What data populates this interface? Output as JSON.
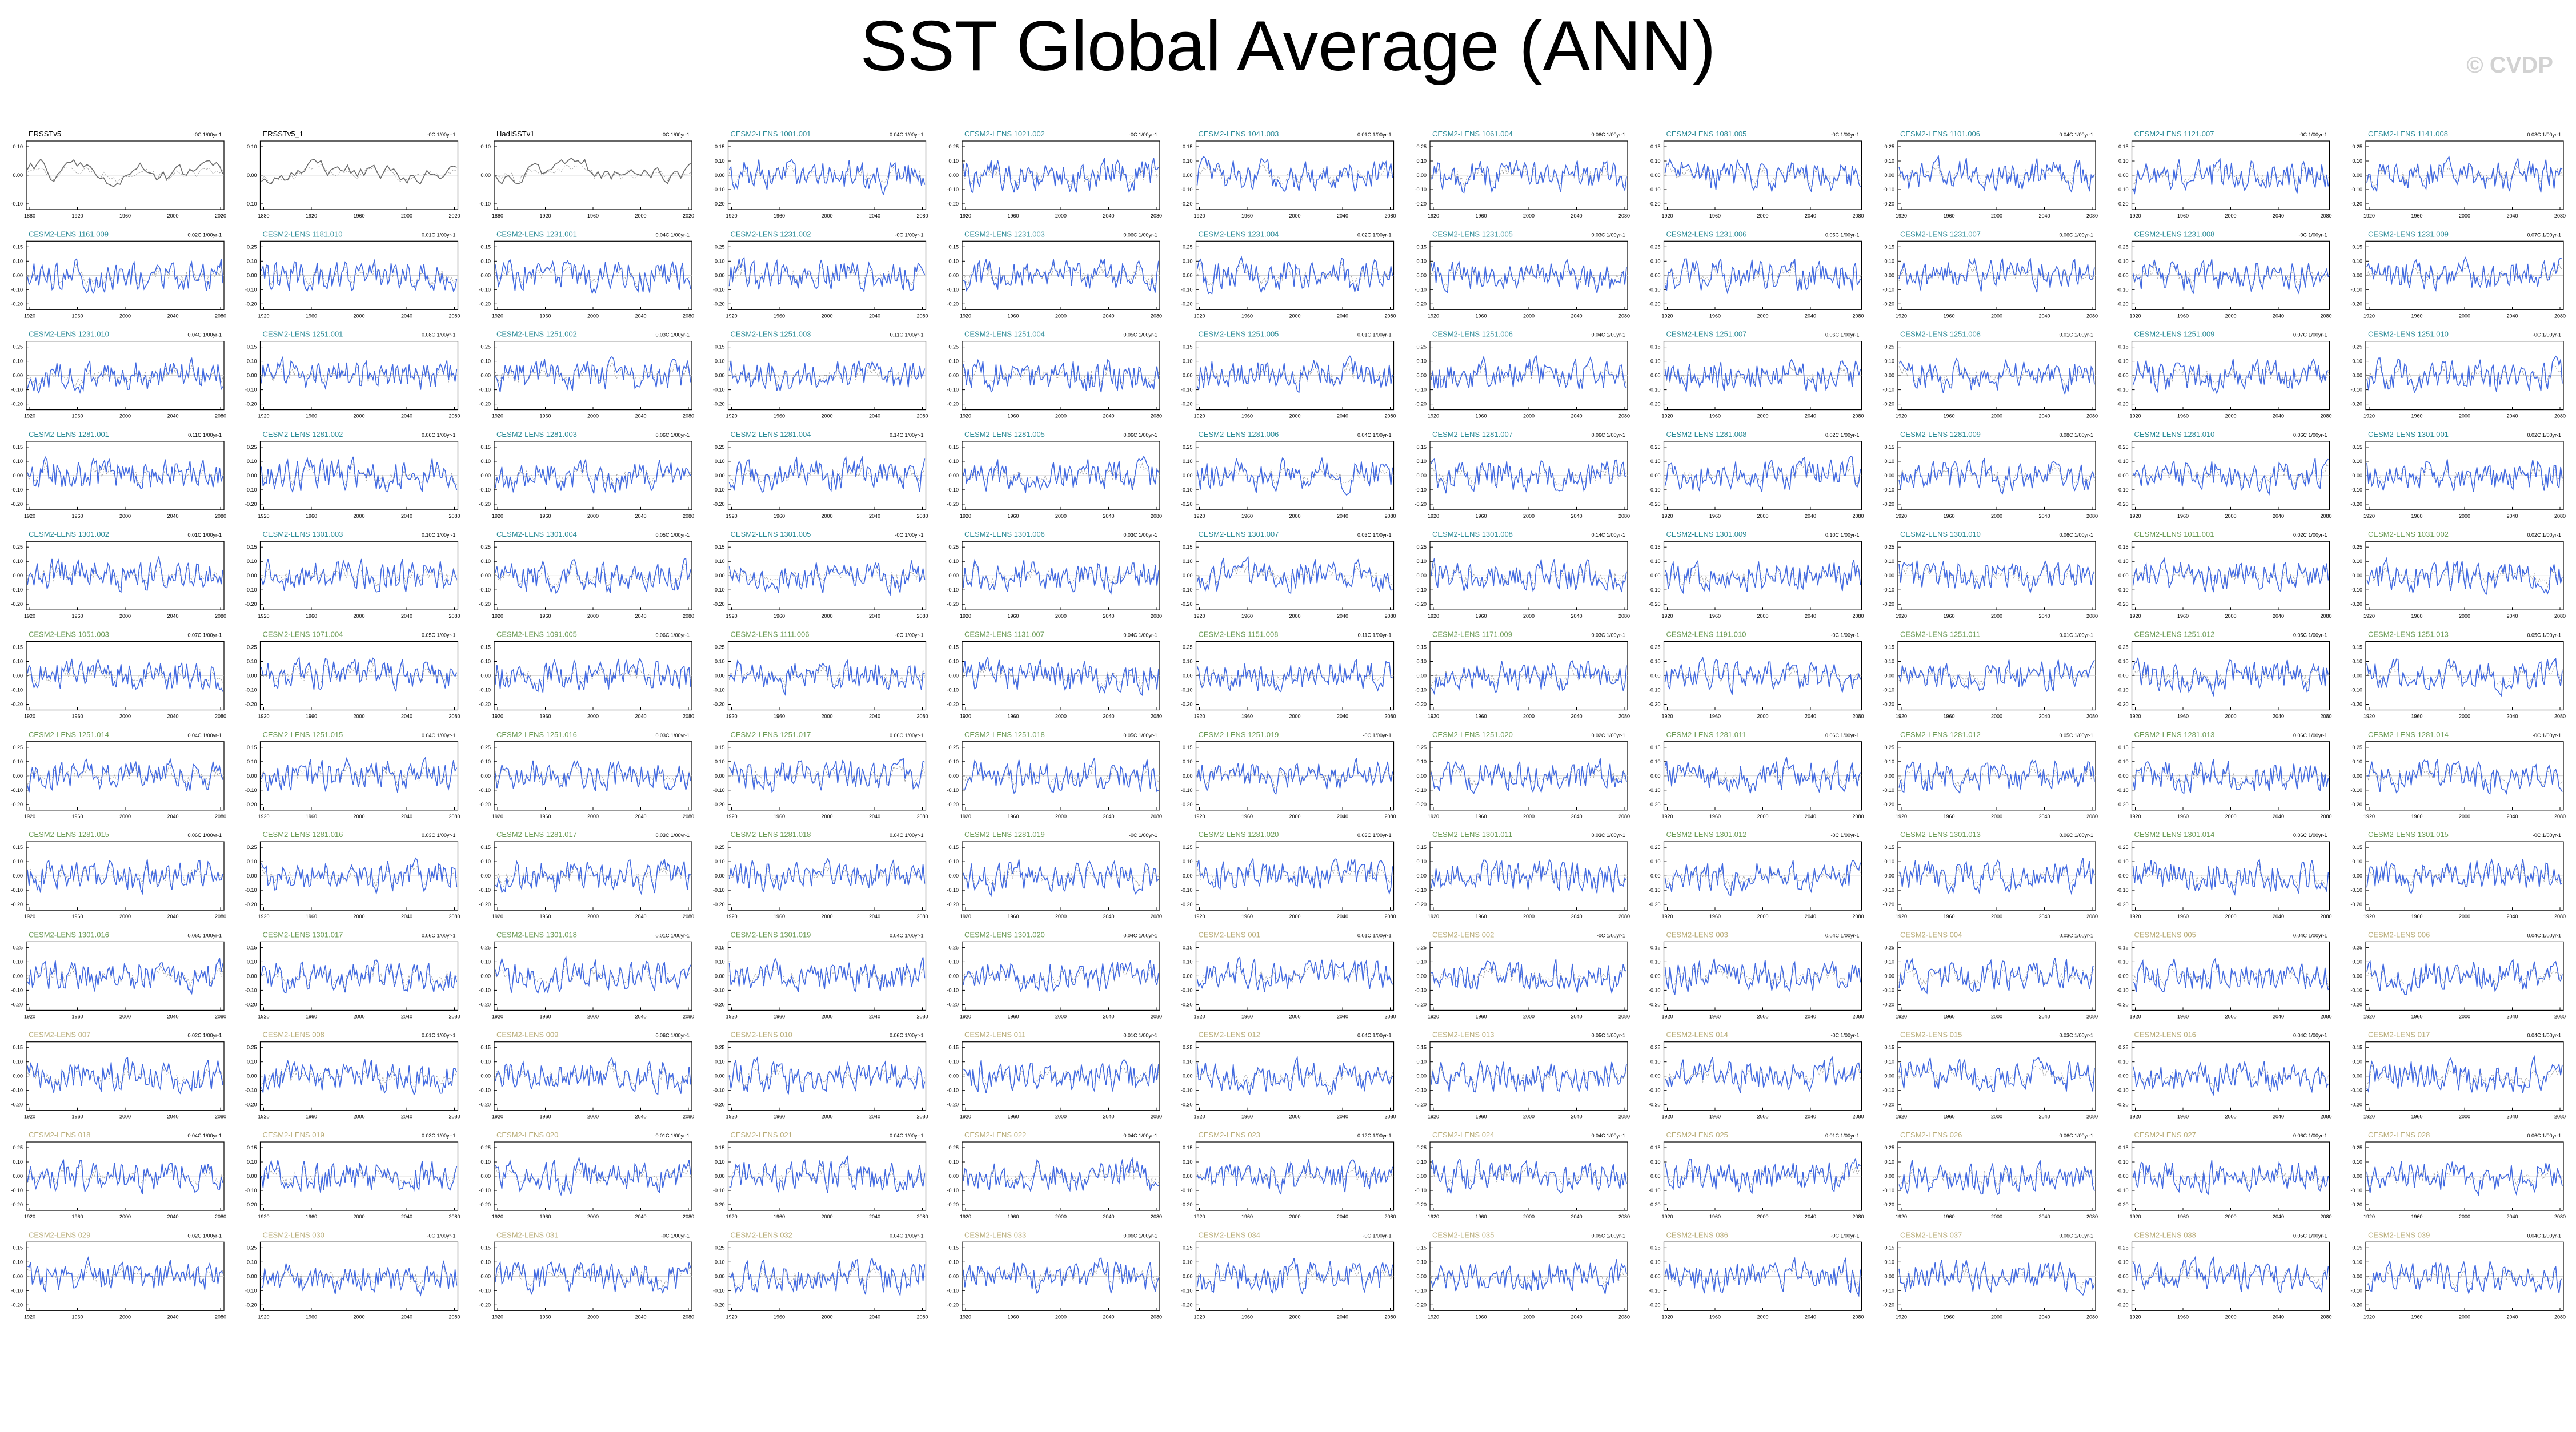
{
  "page": {
    "title": "SST Global Average (ANN)",
    "copyright": "© CVDP"
  },
  "colors": {
    "model_line": "#4169e1",
    "obs_line": "#6a6a6a",
    "obs_title": "#000000",
    "title_teal": "#2a8a96",
    "title_green": "#6a9a55",
    "title_khaki": "#b8ac78",
    "trend_line": "#888888"
  },
  "chart_data": {
    "type": "line",
    "layout": "small-multiples",
    "x_ticks_obs": [
      "1880",
      "1920",
      "1960",
      "2000",
      "2020"
    ],
    "x_ticks_model": [
      "1920",
      "1960",
      "2000",
      "2040",
      "2080"
    ],
    "y_ticks": [
      "0.25",
      "0.15",
      "0.10",
      "0.00",
      "-0.10",
      "-0.20",
      "-0.25",
      "-0.30"
    ],
    "panels": [
      {
        "title": "ERSSTv5",
        "trend": "-0C 1/00yr-1",
        "kind": "obs",
        "color": "obs_title"
      },
      {
        "title": "ERSSTv5_1",
        "trend": "-0C 1/00yr-1",
        "kind": "obs",
        "color": "obs_title"
      },
      {
        "title": "HadISSTv1",
        "trend": "-0C 1/00yr-1",
        "kind": "obs",
        "color": "obs_title"
      },
      {
        "title": "CESM2-LENS 1001.001",
        "trend": "0.04C 1/00yr-1",
        "kind": "model",
        "color": "title_teal"
      },
      {
        "title": "CESM2-LENS 1021.002",
        "trend": "-0C 1/00yr-1",
        "kind": "model",
        "color": "title_teal"
      },
      {
        "title": "CESM2-LENS 1041.003",
        "trend": "0.01C 1/00yr-1",
        "kind": "model",
        "color": "title_teal"
      },
      {
        "title": "CESM2-LENS 1061.004",
        "trend": "0.06C 1/00yr-1",
        "kind": "model",
        "color": "title_teal"
      },
      {
        "title": "CESM2-LENS 1081.005",
        "trend": "-0C 1/00yr-1",
        "kind": "model",
        "color": "title_teal"
      },
      {
        "title": "CESM2-LENS 1101.006",
        "trend": "0.04C 1/00yr-1",
        "kind": "model",
        "color": "title_teal"
      },
      {
        "title": "CESM2-LENS 1121.007",
        "trend": "-0C 1/00yr-1",
        "kind": "model",
        "color": "title_teal"
      },
      {
        "title": "CESM2-LENS 1141.008",
        "trend": "0.03C 1/00yr-1",
        "kind": "model",
        "color": "title_teal"
      },
      {
        "title": "CESM2-LENS 1161.009",
        "trend": "0.02C 1/00yr-1",
        "kind": "model",
        "color": "title_teal"
      },
      {
        "title": "CESM2-LENS 1181.010",
        "trend": "0.01C 1/00yr-1",
        "kind": "model",
        "color": "title_teal"
      },
      {
        "title": "CESM2-LENS 1231.001",
        "trend": "0.04C 1/00yr-1",
        "kind": "model",
        "color": "title_teal"
      },
      {
        "title": "CESM2-LENS 1231.002",
        "trend": "-0C 1/00yr-1",
        "kind": "model",
        "color": "title_teal"
      },
      {
        "title": "CESM2-LENS 1231.003",
        "trend": "0.06C 1/00yr-1",
        "kind": "model",
        "color": "title_teal"
      },
      {
        "title": "CESM2-LENS 1231.004",
        "trend": "0.02C 1/00yr-1",
        "kind": "model",
        "color": "title_teal"
      },
      {
        "title": "CESM2-LENS 1231.005",
        "trend": "0.03C 1/00yr-1",
        "kind": "model",
        "color": "title_teal"
      },
      {
        "title": "CESM2-LENS 1231.006",
        "trend": "0.05C 1/00yr-1",
        "kind": "model",
        "color": "title_teal"
      },
      {
        "title": "CESM2-LENS 1231.007",
        "trend": "0.06C 1/00yr-1",
        "kind": "model",
        "color": "title_teal"
      },
      {
        "title": "CESM2-LENS 1231.008",
        "trend": "-0C 1/00yr-1",
        "kind": "model",
        "color": "title_teal"
      },
      {
        "title": "CESM2-LENS 1231.009",
        "trend": "0.07C 1/00yr-1",
        "kind": "model",
        "color": "title_teal"
      },
      {
        "title": "CESM2-LENS 1231.010",
        "trend": "0.04C 1/00yr-1",
        "kind": "model",
        "color": "title_teal"
      },
      {
        "title": "CESM2-LENS 1251.001",
        "trend": "0.08C 1/00yr-1",
        "kind": "model",
        "color": "title_teal"
      },
      {
        "title": "CESM2-LENS 1251.002",
        "trend": "0.03C 1/00yr-1",
        "kind": "model",
        "color": "title_teal"
      },
      {
        "title": "CESM2-LENS 1251.003",
        "trend": "0.11C 1/00yr-1",
        "kind": "model",
        "color": "title_teal"
      },
      {
        "title": "CESM2-LENS 1251.004",
        "trend": "0.05C 1/00yr-1",
        "kind": "model",
        "color": "title_teal"
      },
      {
        "title": "CESM2-LENS 1251.005",
        "trend": "0.01C 1/00yr-1",
        "kind": "model",
        "color": "title_teal"
      },
      {
        "title": "CESM2-LENS 1251.006",
        "trend": "0.04C 1/00yr-1",
        "kind": "model",
        "color": "title_teal"
      },
      {
        "title": "CESM2-LENS 1251.007",
        "trend": "0.06C 1/00yr-1",
        "kind": "model",
        "color": "title_teal"
      },
      {
        "title": "CESM2-LENS 1251.008",
        "trend": "0.01C 1/00yr-1",
        "kind": "model",
        "color": "title_teal"
      },
      {
        "title": "CESM2-LENS 1251.009",
        "trend": "0.07C 1/00yr-1",
        "kind": "model",
        "color": "title_teal"
      },
      {
        "title": "CESM2-LENS 1251.010",
        "trend": "-0C 1/00yr-1",
        "kind": "model",
        "color": "title_teal"
      },
      {
        "title": "CESM2-LENS 1281.001",
        "trend": "0.11C 1/00yr-1",
        "kind": "model",
        "color": "title_teal"
      },
      {
        "title": "CESM2-LENS 1281.002",
        "trend": "0.06C 1/00yr-1",
        "kind": "model",
        "color": "title_teal"
      },
      {
        "title": "CESM2-LENS 1281.003",
        "trend": "0.06C 1/00yr-1",
        "kind": "model",
        "color": "title_teal"
      },
      {
        "title": "CESM2-LENS 1281.004",
        "trend": "0.14C 1/00yr-1",
        "kind": "model",
        "color": "title_teal"
      },
      {
        "title": "CESM2-LENS 1281.005",
        "trend": "0.06C 1/00yr-1",
        "kind": "model",
        "color": "title_teal"
      },
      {
        "title": "CESM2-LENS 1281.006",
        "trend": "0.04C 1/00yr-1",
        "kind": "model",
        "color": "title_teal"
      },
      {
        "title": "CESM2-LENS 1281.007",
        "trend": "0.06C 1/00yr-1",
        "kind": "model",
        "color": "title_teal"
      },
      {
        "title": "CESM2-LENS 1281.008",
        "trend": "0.02C 1/00yr-1",
        "kind": "model",
        "color": "title_teal"
      },
      {
        "title": "CESM2-LENS 1281.009",
        "trend": "0.08C 1/00yr-1",
        "kind": "model",
        "color": "title_teal"
      },
      {
        "title": "CESM2-LENS 1281.010",
        "trend": "0.06C 1/00yr-1",
        "kind": "model",
        "color": "title_teal"
      },
      {
        "title": "CESM2-LENS 1301.001",
        "trend": "0.02C 1/00yr-1",
        "kind": "model",
        "color": "title_teal"
      },
      {
        "title": "CESM2-LENS 1301.002",
        "trend": "0.01C 1/00yr-1",
        "kind": "model",
        "color": "title_teal"
      },
      {
        "title": "CESM2-LENS 1301.003",
        "trend": "0.10C 1/00yr-1",
        "kind": "model",
        "color": "title_teal"
      },
      {
        "title": "CESM2-LENS 1301.004",
        "trend": "0.05C 1/00yr-1",
        "kind": "model",
        "color": "title_teal"
      },
      {
        "title": "CESM2-LENS 1301.005",
        "trend": "-0C 1/00yr-1",
        "kind": "model",
        "color": "title_teal"
      },
      {
        "title": "CESM2-LENS 1301.006",
        "trend": "0.03C 1/00yr-1",
        "kind": "model",
        "color": "title_teal"
      },
      {
        "title": "CESM2-LENS 1301.007",
        "trend": "0.03C 1/00yr-1",
        "kind": "model",
        "color": "title_teal"
      },
      {
        "title": "CESM2-LENS 1301.008",
        "trend": "0.14C 1/00yr-1",
        "kind": "model",
        "color": "title_teal"
      },
      {
        "title": "CESM2-LENS 1301.009",
        "trend": "0.10C 1/00yr-1",
        "kind": "model",
        "color": "title_teal"
      },
      {
        "title": "CESM2-LENS 1301.010",
        "trend": "0.06C 1/00yr-1",
        "kind": "model",
        "color": "title_teal"
      },
      {
        "title": "CESM2-LENS 1011.001",
        "trend": "0.02C 1/00yr-1",
        "kind": "model",
        "color": "title_green"
      },
      {
        "title": "CESM2-LENS 1031.002",
        "trend": "0.02C 1/00yr-1",
        "kind": "model",
        "color": "title_green"
      },
      {
        "title": "CESM2-LENS 1051.003",
        "trend": "0.07C 1/00yr-1",
        "kind": "model",
        "color": "title_green"
      },
      {
        "title": "CESM2-LENS 1071.004",
        "trend": "0.05C 1/00yr-1",
        "kind": "model",
        "color": "title_green"
      },
      {
        "title": "CESM2-LENS 1091.005",
        "trend": "0.06C 1/00yr-1",
        "kind": "model",
        "color": "title_green"
      },
      {
        "title": "CESM2-LENS 1111.006",
        "trend": "-0C 1/00yr-1",
        "kind": "model",
        "color": "title_green"
      },
      {
        "title": "CESM2-LENS 1131.007",
        "trend": "0.04C 1/00yr-1",
        "kind": "model",
        "color": "title_green"
      },
      {
        "title": "CESM2-LENS 1151.008",
        "trend": "0.11C 1/00yr-1",
        "kind": "model",
        "color": "title_green"
      },
      {
        "title": "CESM2-LENS 1171.009",
        "trend": "0.03C 1/00yr-1",
        "kind": "model",
        "color": "title_green"
      },
      {
        "title": "CESM2-LENS 1191.010",
        "trend": "-0C 1/00yr-1",
        "kind": "model",
        "color": "title_green"
      },
      {
        "title": "CESM2-LENS 1251.011",
        "trend": "0.01C 1/00yr-1",
        "kind": "model",
        "color": "title_green"
      },
      {
        "title": "CESM2-LENS 1251.012",
        "trend": "0.05C 1/00yr-1",
        "kind": "model",
        "color": "title_green"
      },
      {
        "title": "CESM2-LENS 1251.013",
        "trend": "0.05C 1/00yr-1",
        "kind": "model",
        "color": "title_green"
      },
      {
        "title": "CESM2-LENS 1251.014",
        "trend": "0.04C 1/00yr-1",
        "kind": "model",
        "color": "title_green"
      },
      {
        "title": "CESM2-LENS 1251.015",
        "trend": "0.04C 1/00yr-1",
        "kind": "model",
        "color": "title_green"
      },
      {
        "title": "CESM2-LENS 1251.016",
        "trend": "0.03C 1/00yr-1",
        "kind": "model",
        "color": "title_green"
      },
      {
        "title": "CESM2-LENS 1251.017",
        "trend": "0.06C 1/00yr-1",
        "kind": "model",
        "color": "title_green"
      },
      {
        "title": "CESM2-LENS 1251.018",
        "trend": "0.05C 1/00yr-1",
        "kind": "model",
        "color": "title_green"
      },
      {
        "title": "CESM2-LENS 1251.019",
        "trend": "-0C 1/00yr-1",
        "kind": "model",
        "color": "title_green"
      },
      {
        "title": "CESM2-LENS 1251.020",
        "trend": "0.02C 1/00yr-1",
        "kind": "model",
        "color": "title_green"
      },
      {
        "title": "CESM2-LENS 1281.011",
        "trend": "0.06C 1/00yr-1",
        "kind": "model",
        "color": "title_green"
      },
      {
        "title": "CESM2-LENS 1281.012",
        "trend": "0.05C 1/00yr-1",
        "kind": "model",
        "color": "title_green"
      },
      {
        "title": "CESM2-LENS 1281.013",
        "trend": "0.06C 1/00yr-1",
        "kind": "model",
        "color": "title_green"
      },
      {
        "title": "CESM2-LENS 1281.014",
        "trend": "-0C 1/00yr-1",
        "kind": "model",
        "color": "title_green"
      },
      {
        "title": "CESM2-LENS 1281.015",
        "trend": "0.06C 1/00yr-1",
        "kind": "model",
        "color": "title_green"
      },
      {
        "title": "CESM2-LENS 1281.016",
        "trend": "0.03C 1/00yr-1",
        "kind": "model",
        "color": "title_green"
      },
      {
        "title": "CESM2-LENS 1281.017",
        "trend": "0.03C 1/00yr-1",
        "kind": "model",
        "color": "title_green"
      },
      {
        "title": "CESM2-LENS 1281.018",
        "trend": "0.04C 1/00yr-1",
        "kind": "model",
        "color": "title_green"
      },
      {
        "title": "CESM2-LENS 1281.019",
        "trend": "-0C 1/00yr-1",
        "kind": "model",
        "color": "title_green"
      },
      {
        "title": "CESM2-LENS 1281.020",
        "trend": "0.03C 1/00yr-1",
        "kind": "model",
        "color": "title_green"
      },
      {
        "title": "CESM2-LENS 1301.011",
        "trend": "0.03C 1/00yr-1",
        "kind": "model",
        "color": "title_green"
      },
      {
        "title": "CESM2-LENS 1301.012",
        "trend": "-0C 1/00yr-1",
        "kind": "model",
        "color": "title_green"
      },
      {
        "title": "CESM2-LENS 1301.013",
        "trend": "0.06C 1/00yr-1",
        "kind": "model",
        "color": "title_green"
      },
      {
        "title": "CESM2-LENS 1301.014",
        "trend": "0.06C 1/00yr-1",
        "kind": "model",
        "color": "title_green"
      },
      {
        "title": "CESM2-LENS 1301.015",
        "trend": "-0C 1/00yr-1",
        "kind": "model",
        "color": "title_green"
      },
      {
        "title": "CESM2-LENS 1301.016",
        "trend": "0.06C 1/00yr-1",
        "kind": "model",
        "color": "title_green"
      },
      {
        "title": "CESM2-LENS 1301.017",
        "trend": "0.06C 1/00yr-1",
        "kind": "model",
        "color": "title_green"
      },
      {
        "title": "CESM2-LENS 1301.018",
        "trend": "0.01C 1/00yr-1",
        "kind": "model",
        "color": "title_green"
      },
      {
        "title": "CESM2-LENS 1301.019",
        "trend": "0.04C 1/00yr-1",
        "kind": "model",
        "color": "title_green"
      },
      {
        "title": "CESM2-LENS 1301.020",
        "trend": "0.04C 1/00yr-1",
        "kind": "model",
        "color": "title_green"
      },
      {
        "title": "CESM2-LENS 001",
        "trend": "0.01C 1/00yr-1",
        "kind": "model",
        "color": "title_khaki"
      },
      {
        "title": "CESM2-LENS 002",
        "trend": "-0C 1/00yr-1",
        "kind": "model",
        "color": "title_khaki"
      },
      {
        "title": "CESM2-LENS 003",
        "trend": "0.04C 1/00yr-1",
        "kind": "model",
        "color": "title_khaki"
      },
      {
        "title": "CESM2-LENS 004",
        "trend": "0.03C 1/00yr-1",
        "kind": "model",
        "color": "title_khaki"
      },
      {
        "title": "CESM2-LENS 005",
        "trend": "0.04C 1/00yr-1",
        "kind": "model",
        "color": "title_khaki"
      },
      {
        "title": "CESM2-LENS 006",
        "trend": "0.04C 1/00yr-1",
        "kind": "model",
        "color": "title_khaki"
      },
      {
        "title": "CESM2-LENS 007",
        "trend": "0.02C 1/00yr-1",
        "kind": "model",
        "color": "title_khaki"
      },
      {
        "title": "CESM2-LENS 008",
        "trend": "0.01C 1/00yr-1",
        "kind": "model",
        "color": "title_khaki"
      },
      {
        "title": "CESM2-LENS 009",
        "trend": "0.06C 1/00yr-1",
        "kind": "model",
        "color": "title_khaki"
      },
      {
        "title": "CESM2-LENS 010",
        "trend": "0.06C 1/00yr-1",
        "kind": "model",
        "color": "title_khaki"
      },
      {
        "title": "CESM2-LENS 011",
        "trend": "0.01C 1/00yr-1",
        "kind": "model",
        "color": "title_khaki"
      },
      {
        "title": "CESM2-LENS 012",
        "trend": "0.04C 1/00yr-1",
        "kind": "model",
        "color": "title_khaki"
      },
      {
        "title": "CESM2-LENS 013",
        "trend": "0.05C 1/00yr-1",
        "kind": "model",
        "color": "title_khaki"
      },
      {
        "title": "CESM2-LENS 014",
        "trend": "-0C 1/00yr-1",
        "kind": "model",
        "color": "title_khaki"
      },
      {
        "title": "CESM2-LENS 015",
        "trend": "0.03C 1/00yr-1",
        "kind": "model",
        "color": "title_khaki"
      },
      {
        "title": "CESM2-LENS 016",
        "trend": "0.04C 1/00yr-1",
        "kind": "model",
        "color": "title_khaki"
      },
      {
        "title": "CESM2-LENS 017",
        "trend": "0.04C 1/00yr-1",
        "kind": "model",
        "color": "title_khaki"
      },
      {
        "title": "CESM2-LENS 018",
        "trend": "0.04C 1/00yr-1",
        "kind": "model",
        "color": "title_khaki"
      },
      {
        "title": "CESM2-LENS 019",
        "trend": "0.03C 1/00yr-1",
        "kind": "model",
        "color": "title_khaki"
      },
      {
        "title": "CESM2-LENS 020",
        "trend": "0.01C 1/00yr-1",
        "kind": "model",
        "color": "title_khaki"
      },
      {
        "title": "CESM2-LENS 021",
        "trend": "0.04C 1/00yr-1",
        "kind": "model",
        "color": "title_khaki"
      },
      {
        "title": "CESM2-LENS 022",
        "trend": "0.04C 1/00yr-1",
        "kind": "model",
        "color": "title_khaki"
      },
      {
        "title": "CESM2-LENS 023",
        "trend": "0.12C 1/00yr-1",
        "kind": "model",
        "color": "title_khaki"
      },
      {
        "title": "CESM2-LENS 024",
        "trend": "0.04C 1/00yr-1",
        "kind": "model",
        "color": "title_khaki"
      },
      {
        "title": "CESM2-LENS 025",
        "trend": "0.01C 1/00yr-1",
        "kind": "model",
        "color": "title_khaki"
      },
      {
        "title": "CESM2-LENS 026",
        "trend": "0.06C 1/00yr-1",
        "kind": "model",
        "color": "title_khaki"
      },
      {
        "title": "CESM2-LENS 027",
        "trend": "0.06C 1/00yr-1",
        "kind": "model",
        "color": "title_khaki"
      },
      {
        "title": "CESM2-LENS 028",
        "trend": "0.06C 1/00yr-1",
        "kind": "model",
        "color": "title_khaki"
      },
      {
        "title": "CESM2-LENS 029",
        "trend": "0.02C 1/00yr-1",
        "kind": "model",
        "color": "title_khaki"
      },
      {
        "title": "CESM2-LENS 030",
        "trend": "-0C 1/00yr-1",
        "kind": "model",
        "color": "title_khaki"
      },
      {
        "title": "CESM2-LENS 031",
        "trend": "-0C 1/00yr-1",
        "kind": "model",
        "color": "title_khaki"
      },
      {
        "title": "CESM2-LENS 032",
        "trend": "0.04C 1/00yr-1",
        "kind": "model",
        "color": "title_khaki"
      },
      {
        "title": "CESM2-LENS 033",
        "trend": "0.06C 1/00yr-1",
        "kind": "model",
        "color": "title_khaki"
      },
      {
        "title": "CESM2-LENS 034",
        "trend": "-0C 1/00yr-1",
        "kind": "model",
        "color": "title_khaki"
      },
      {
        "title": "CESM2-LENS 035",
        "trend": "0.05C 1/00yr-1",
        "kind": "model",
        "color": "title_khaki"
      },
      {
        "title": "CESM2-LENS 036",
        "trend": "-0C 1/00yr-1",
        "kind": "model",
        "color": "title_khaki"
      },
      {
        "title": "CESM2-LENS 037",
        "trend": "0.06C 1/00yr-1",
        "kind": "model",
        "color": "title_khaki"
      },
      {
        "title": "CESM2-LENS 038",
        "trend": "0.05C 1/00yr-1",
        "kind": "model",
        "color": "title_khaki"
      },
      {
        "title": "CESM2-LENS 039",
        "trend": "0.04C 1/00yr-1",
        "kind": "model",
        "color": "title_khaki"
      }
    ]
  }
}
